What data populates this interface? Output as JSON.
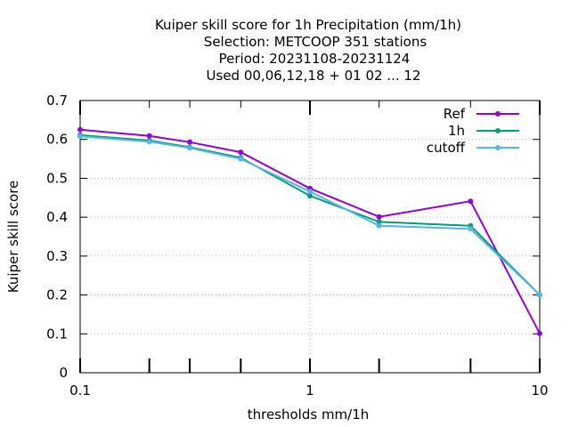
{
  "chart_data": {
    "type": "line",
    "title_lines": [
      "Kuiper skill score  for 1h Precipitation (mm/1h)",
      "Selection: METCOOP    351 stations",
      "Period: 20231108-20231124",
      "Used  00,06,12,18  + 01 02 ... 12"
    ],
    "xlabel": "thresholds mm/1h",
    "ylabel": "Kuiper skill score",
    "xscale": "log",
    "xlim": [
      0.1,
      10
    ],
    "ylim": [
      0,
      0.7
    ],
    "x_ticks": [
      0.1,
      1,
      10
    ],
    "x_tick_labels": [
      "0.1",
      "1",
      "10"
    ],
    "x_minor_ticks": [
      0.2,
      0.3,
      0.5,
      2,
      5
    ],
    "y_ticks": [
      0,
      0.1,
      0.2,
      0.3,
      0.4,
      0.5,
      0.6,
      0.7
    ],
    "y_tick_labels": [
      "0",
      "0.1",
      "0.2",
      "0.3",
      "0.4",
      "0.5",
      "0.6",
      "0.7"
    ],
    "grid": true,
    "legend_position": "top-right",
    "x": [
      0.1,
      0.2,
      0.3,
      0.5,
      1,
      2,
      5,
      10
    ],
    "series": [
      {
        "name": "Ref",
        "color": "#9400d3",
        "values": [
          0.625,
          0.609,
          0.593,
          0.567,
          0.474,
          0.401,
          0.441,
          0.101
        ]
      },
      {
        "name": "1h",
        "color": "#009e73",
        "values": [
          0.611,
          0.597,
          0.58,
          0.553,
          0.455,
          0.388,
          0.378,
          0.2
        ]
      },
      {
        "name": "cutoff",
        "color": "#56b4e9",
        "values": [
          0.608,
          0.594,
          0.578,
          0.55,
          0.466,
          0.378,
          0.37,
          0.2
        ]
      }
    ]
  }
}
